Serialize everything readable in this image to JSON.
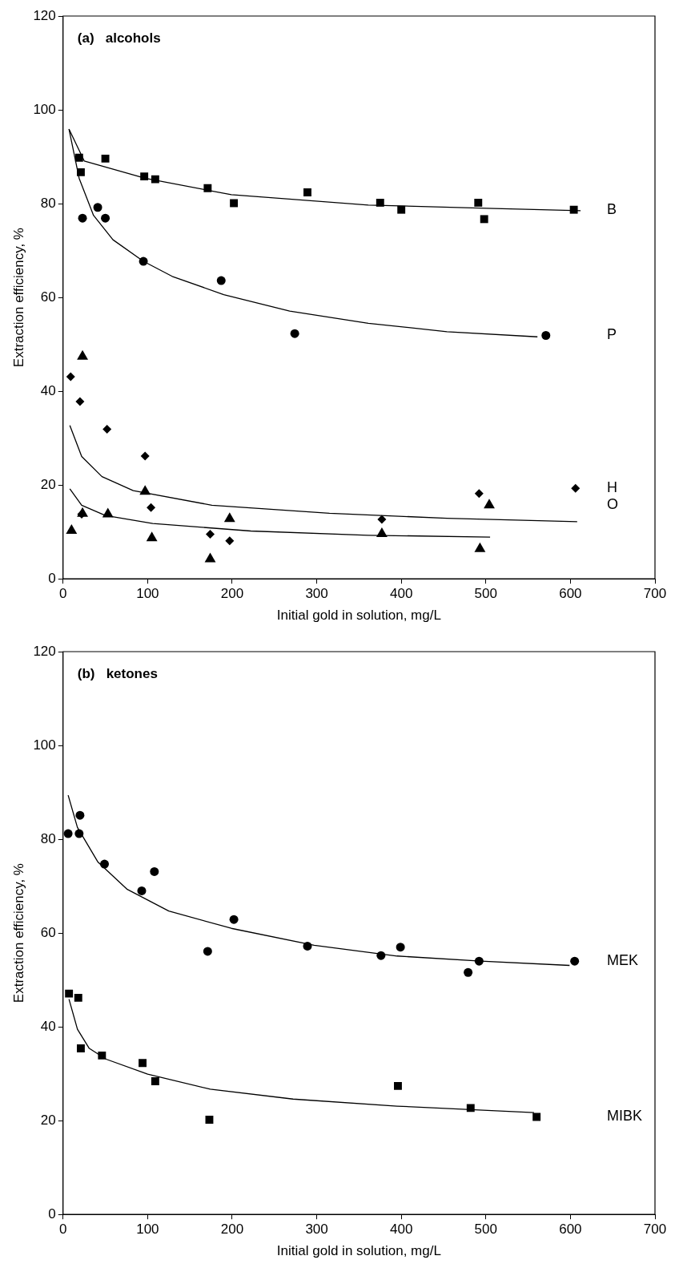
{
  "chart_data": [
    {
      "type": "scatter",
      "title": "(a)   alcohols",
      "xlabel": "Initial gold in solution, mg/L",
      "ylabel": "Extraction efficiency, %",
      "xlim": [
        0,
        700
      ],
      "ylim": [
        0,
        120
      ],
      "xticks": [
        0,
        100,
        200,
        300,
        400,
        500,
        600,
        700
      ],
      "yticks": [
        0,
        20,
        40,
        60,
        80,
        100,
        120
      ],
      "grid": false,
      "legend": false,
      "series": [
        {
          "name": "B",
          "color": "#000000",
          "marker": "square",
          "x": [
            19,
            50,
            21,
            96,
            109,
            171,
            202,
            289,
            375,
            400,
            491,
            498,
            604
          ],
          "values": [
            89.8,
            89.6,
            86.7,
            85.8,
            85.2,
            83.3,
            80.1,
            82.4,
            80.2,
            78.7,
            80.2,
            76.7,
            78.7
          ]
        },
        {
          "name": "P",
          "color": "#000000",
          "marker": "circle",
          "x": [
            23,
            41,
            50,
            95,
            187,
            274,
            571
          ],
          "values": [
            76.9,
            79.2,
            76.9,
            67.7,
            63.6,
            52.3,
            51.9
          ]
        },
        {
          "name": "H",
          "color": "#000000",
          "marker": "diamond",
          "x": [
            9,
            20,
            52,
            97,
            104,
            22,
            174,
            197,
            377,
            492,
            606
          ],
          "values": [
            43.1,
            37.8,
            31.9,
            26.2,
            15.2,
            13.8,
            9.5,
            8.1,
            12.7,
            18.2,
            19.3
          ]
        },
        {
          "name": "O",
          "color": "#000000",
          "marker": "triangle",
          "x": [
            23,
            10,
            23,
            53,
            97,
            105,
            174,
            197,
            377,
            493,
            504
          ],
          "values": [
            47.4,
            10.3,
            13.9,
            13.8,
            18.6,
            8.7,
            4.2,
            12.8,
            9.6,
            6.4,
            15.7
          ]
        },
        {
          "type": "line",
          "color": "#000000",
          "marker": "none",
          "x": [
            7,
            25,
            97,
            199,
            361,
            501,
            612
          ],
          "values": [
            95.9,
            89.1,
            85.4,
            81.9,
            79.7,
            79,
            78.5
          ]
        },
        {
          "type": "line",
          "color": "#000000",
          "marker": "none",
          "x": [
            7,
            19,
            36,
            59,
            95,
            129,
            190,
            268,
            361,
            454,
            561
          ],
          "values": [
            95.9,
            85.4,
            77.5,
            72.3,
            67.7,
            64.5,
            60.6,
            57.1,
            54.5,
            52.7,
            51.6
          ]
        },
        {
          "type": "line",
          "color": "#000000",
          "marker": "none",
          "x": [
            8,
            22,
            46,
            83,
            176,
            315,
            454,
            608
          ],
          "values": [
            32.7,
            26.1,
            21.8,
            18.8,
            15.7,
            14,
            12.9,
            12.2
          ]
        },
        {
          "type": "line",
          "color": "#000000",
          "marker": "none",
          "x": [
            8,
            22,
            50,
            106,
            222,
            361,
            505
          ],
          "values": [
            19.2,
            15.7,
            13.5,
            11.8,
            10.2,
            9.3,
            8.9
          ]
        }
      ]
    },
    {
      "type": "scatter",
      "title": "(b)   ketones",
      "xlabel": "Initial gold in solution, mg/L",
      "ylabel": "Extraction efficiency, %",
      "xlim": [
        0,
        700
      ],
      "ylim": [
        0,
        120
      ],
      "xticks": [
        0,
        100,
        200,
        300,
        400,
        500,
        600,
        700
      ],
      "yticks": [
        0,
        20,
        40,
        60,
        80,
        100,
        120
      ],
      "grid": false,
      "legend": false,
      "series": [
        {
          "name": "MEK",
          "color": "#000000",
          "marker": "circle",
          "x": [
            6,
            19,
            20,
            49,
            93,
            108,
            202,
            171,
            289,
            376,
            399,
            479,
            492,
            605
          ],
          "values": [
            81.2,
            81.2,
            85.1,
            74.7,
            69,
            73.1,
            62.9,
            56.1,
            57.2,
            55.2,
            57,
            51.6,
            54,
            54
          ]
        },
        {
          "name": "MIBK",
          "color": "#000000",
          "marker": "square",
          "x": [
            7,
            18,
            21,
            46,
            94,
            109,
            173,
            396,
            482,
            560
          ],
          "values": [
            47.1,
            46.2,
            35.4,
            33.9,
            32.3,
            28.4,
            20.2,
            27.4,
            22.7,
            20.8
          ]
        },
        {
          "type": "line",
          "color": "#000000",
          "marker": "none",
          "x": [
            6,
            17,
            41,
            76,
            125,
            199,
            297,
            395,
            494,
            599
          ],
          "values": [
            89.4,
            82.5,
            75.2,
            69.3,
            64.7,
            61,
            57.4,
            55.1,
            54,
            53.1
          ]
        },
        {
          "type": "line",
          "color": "#000000",
          "marker": "none",
          "x": [
            7,
            17,
            31,
            51,
            100,
            174,
            272,
            395,
            557
          ],
          "values": [
            45.9,
            39.5,
            35.4,
            33.1,
            29.9,
            26.7,
            24.6,
            23.1,
            21.7
          ]
        }
      ]
    }
  ]
}
